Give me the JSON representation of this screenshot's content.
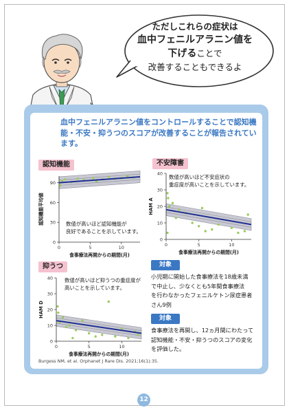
{
  "bubble": {
    "line1": "ただしこれらの症状は",
    "line2": "血中フェニルアラニン値を",
    "line3_bold": "下げる",
    "line3_rest": "ことで",
    "line4": "改善することもできるよ"
  },
  "panel": {
    "heading": "血中フェニルアラニン値をコントロールすることで認知機能・不安・抑うつのスコアが改善することが報告されています。"
  },
  "charts": {
    "cognitive": {
      "label": "認知機能",
      "ylabel": "認知機能平均値",
      "xlabel": "食事療法再開からの期間(月)",
      "annotation_line1": "数値が高いほど認知機能が",
      "annotation_line2": "良好であることを示しています。"
    },
    "anxiety": {
      "label": "不安障害",
      "ylabel": "HAM A",
      "xlabel": "食事療法再開からの期間(月)",
      "annotation_line1": "数値が高いほど不安症状の",
      "annotation_line2": "重症度が高いことを示しています。"
    },
    "depression": {
      "label": "抑うつ",
      "ylabel": "HAM D",
      "xlabel": "食事療法再開からの期間(月)",
      "annotation_line1": "数値が高いほど抑うつの重症度が",
      "annotation_line2": "高いことを示しています。"
    }
  },
  "chart_data": [
    {
      "type": "scatter",
      "title": "認知機能",
      "xlabel": "食事療法再開からの期間(月)",
      "ylabel": "認知機能平均値",
      "xlim": [
        0,
        13
      ],
      "ylim": [
        0,
        100
      ],
      "x_ticks": [
        "0",
        "5",
        "10"
      ],
      "y_ticks": [
        "0",
        "30",
        "60",
        "90"
      ],
      "trend": {
        "x": [
          0,
          13
        ],
        "y": [
          90,
          99
        ]
      },
      "points": [
        [
          0.2,
          86
        ],
        [
          0.5,
          93
        ],
        [
          1,
          95
        ],
        [
          2,
          91
        ],
        [
          3,
          96
        ],
        [
          4,
          94
        ],
        [
          5.5,
          97
        ],
        [
          6,
          92
        ],
        [
          7,
          95
        ],
        [
          8,
          99
        ],
        [
          9,
          96
        ],
        [
          10,
          97
        ],
        [
          11,
          100
        ],
        [
          12,
          98
        ]
      ]
    },
    {
      "type": "scatter",
      "title": "不安障害",
      "xlabel": "食事療法再開からの期間(月)",
      "ylabel": "HAM A",
      "xlim": [
        0,
        13
      ],
      "ylim": [
        0,
        40
      ],
      "x_ticks": [
        "0",
        "5",
        "10"
      ],
      "y_ticks": [
        "0",
        "10",
        "20",
        "30",
        "40"
      ],
      "trend": {
        "x": [
          0,
          13
        ],
        "y": [
          18,
          9
        ]
      },
      "points": [
        [
          0.2,
          28
        ],
        [
          0.3,
          25
        ],
        [
          0.5,
          20
        ],
        [
          1,
          22
        ],
        [
          1.5,
          13
        ],
        [
          2,
          18
        ],
        [
          3,
          16
        ],
        [
          4,
          10
        ],
        [
          5,
          8
        ],
        [
          5.5,
          19
        ],
        [
          6,
          5
        ],
        [
          7,
          6
        ],
        [
          8,
          9
        ],
        [
          10,
          7
        ],
        [
          11,
          4
        ],
        [
          12,
          5
        ],
        [
          12.5,
          15
        ],
        [
          0.2,
          4
        ]
      ]
    },
    {
      "type": "scatter",
      "title": "抑うつ",
      "xlabel": "食事療法再開からの期間(月)",
      "ylabel": "HAM D",
      "xlim": [
        0,
        13
      ],
      "ylim": [
        0,
        40
      ],
      "x_ticks": [
        "0",
        "5",
        "10"
      ],
      "y_ticks": [
        "0",
        "10",
        "20",
        "30",
        "40"
      ],
      "trend": {
        "x": [
          0,
          13
        ],
        "y": [
          13,
          5
        ]
      },
      "points": [
        [
          0.2,
          22
        ],
        [
          0.3,
          18
        ],
        [
          0.5,
          12
        ],
        [
          1,
          15
        ],
        [
          1.5,
          9
        ],
        [
          2,
          10
        ],
        [
          3,
          7
        ],
        [
          4,
          13
        ],
        [
          5,
          5
        ],
        [
          6,
          3
        ],
        [
          7,
          4
        ],
        [
          8,
          25
        ],
        [
          9,
          3
        ],
        [
          10,
          8
        ],
        [
          11,
          2
        ],
        [
          12,
          6
        ],
        [
          12.5,
          4
        ],
        [
          2.5,
          2
        ]
      ]
    }
  ],
  "targets": {
    "tag1": "対象",
    "text1_line1": "小児期に開始した食事療法を18歳未満",
    "text1_line2": "で中止し、少なくとも5年間食事療法",
    "text1_line3": "を行わなかったフェニルケトン尿症患者",
    "text1_line4": "さん9例",
    "tag2": "対象",
    "text2_line1": "食事療法を再開し、12ヵ月間にわたって",
    "text2_line2": "認知機能・不安・抑うつのスコアの変化",
    "text2_line3": "を評価した。"
  },
  "citation": "Burgess NM, et al. Orphanet J Rare Dis. 2021;16(1):35.",
  "page_number": "12",
  "colors": {
    "accent_blue": "#3b78c4",
    "panel_blue": "#a9cbe9",
    "label_pink": "#f5c2cf",
    "trend_navy": "#1f2f8f",
    "point_green": "#9acb5c"
  },
  "icons": {
    "doctor": "doctor-illustration-icon"
  }
}
